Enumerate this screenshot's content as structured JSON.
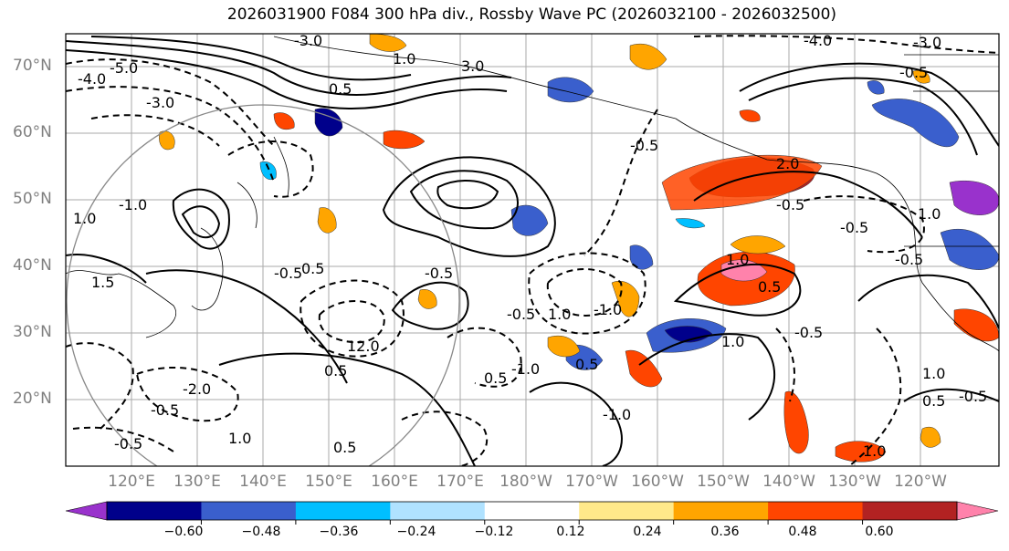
{
  "title": "2026031900 F084 300 hPa div., Rossby Wave PC (2026032100 - 2026032500)",
  "map": {
    "lat_labels": [
      "70°N",
      "60°N",
      "50°N",
      "40°N",
      "30°N",
      "20°N"
    ],
    "lon_labels": [
      "120°E",
      "130°E",
      "140°E",
      "150°E",
      "160°E",
      "170°E",
      "180°W",
      "170°W",
      "160°W",
      "150°W",
      "140°W",
      "130°W",
      "120°W"
    ],
    "contour_labels": [
      "-3.0",
      "-5.0",
      "-4.0",
      "-3.0",
      "-4.0",
      "-3.0",
      "1.0",
      "3.0",
      "0.5",
      "-0.5",
      "1.0",
      "-1.0",
      "1.5",
      "-0.5",
      "0.5",
      "12.0",
      "0.5",
      "-2.0",
      "-0.5",
      "0.5",
      "1.0",
      "-0.5",
      "-0.5",
      "1.0",
      "-1.0",
      "0.5",
      "2.0",
      "-0.5",
      "-0.5",
      "1.0",
      "-0.5",
      "1.0",
      "0.5",
      "-0.5",
      "1.0",
      "-0.5",
      "0.5",
      "-1.0",
      "-0.5",
      "1.0",
      "0.5",
      "-0.5",
      "1.0",
      "-1.0"
    ],
    "colors": {
      "land": "#000000",
      "gridline": "#aaaaaa"
    }
  },
  "colorbar": {
    "ticks": [
      "−0.60",
      "−0.48",
      "−0.36",
      "−0.24",
      "−0.12",
      "0.12",
      "0.24",
      "0.36",
      "0.48",
      "0.60"
    ],
    "colors": [
      "#9932cc",
      "#00008b",
      "#3a5fcd",
      "#00bfff",
      "#b0e2ff",
      "#ffffff",
      "#ffe98a",
      "#ffa500",
      "#ff4500",
      "#b22222",
      "#ff82ab"
    ]
  }
}
